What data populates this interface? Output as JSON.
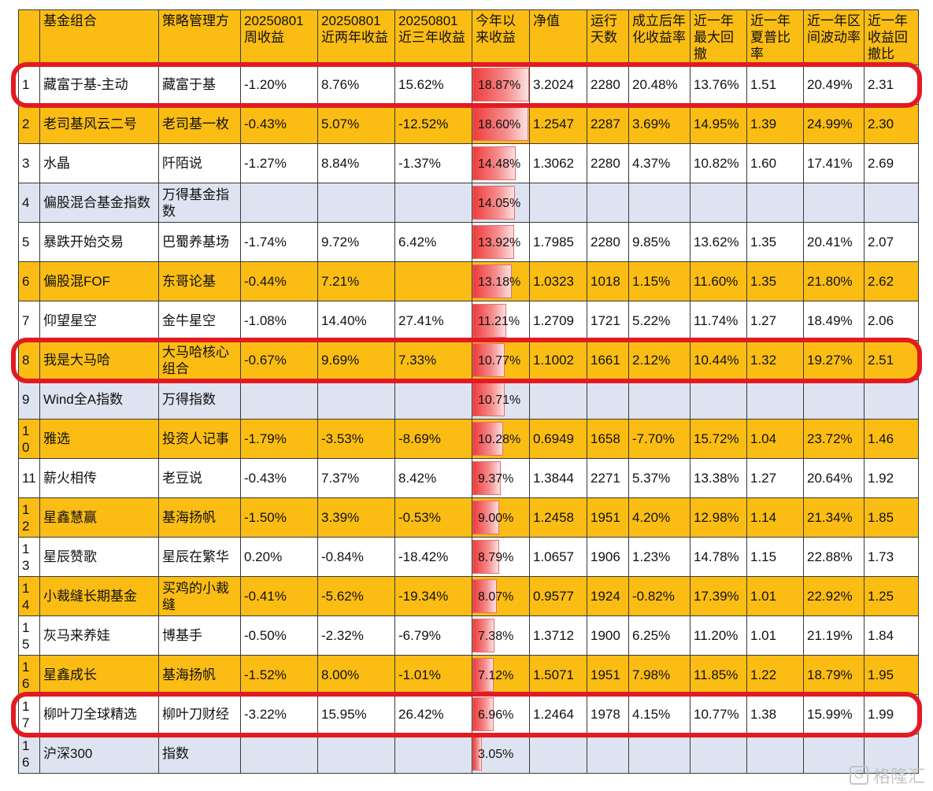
{
  "headers": [
    "",
    "基金组合",
    "策略管理方",
    "20250801周收益",
    "20250801近两年收益",
    "20250801近三年收益",
    "今年以来收益",
    "净值",
    "运行天数",
    "成立后年化收益率",
    "近一年最大回撤",
    "近一年夏普比率",
    "近一年区间波动率",
    "近一年收益回撤比"
  ],
  "rows": [
    {
      "idx": "1",
      "name": "藏富于基-主动",
      "manager": "藏富于基",
      "week": "-1.20%",
      "two_year": "8.76%",
      "three_year": "15.62%",
      "ytd": "18.87%",
      "ytd_value": 18.87,
      "nav": "3.2024",
      "days": "2280",
      "annual": "20.48%",
      "max_dd": "13.76%",
      "sharpe": "1.51",
      "vol": "20.49%",
      "ret_dd": "2.31",
      "style": "white"
    },
    {
      "idx": "2",
      "name": "老司基风云二号",
      "manager": "老司基一枚",
      "week": "-0.43%",
      "two_year": "5.07%",
      "three_year": "-12.52%",
      "ytd": "18.60%",
      "ytd_value": 18.6,
      "nav": "1.2547",
      "days": "2287",
      "annual": "3.69%",
      "max_dd": "14.95%",
      "sharpe": "1.39",
      "vol": "24.99%",
      "ret_dd": "2.30",
      "style": "yellow"
    },
    {
      "idx": "3",
      "name": "水晶",
      "manager": "阡陌说",
      "week": "-1.27%",
      "two_year": "8.84%",
      "three_year": "-1.37%",
      "ytd": "14.48%",
      "ytd_value": 14.48,
      "nav": "1.3062",
      "days": "2280",
      "annual": "4.37%",
      "max_dd": "10.82%",
      "sharpe": "1.60",
      "vol": "17.41%",
      "ret_dd": "2.69",
      "style": "white"
    },
    {
      "idx": "4",
      "name": "偏股混合基金指数",
      "manager": "万得基金指数",
      "week": "",
      "two_year": "",
      "three_year": "",
      "ytd": "14.05%",
      "ytd_value": 14.05,
      "nav": "",
      "days": "",
      "annual": "",
      "max_dd": "",
      "sharpe": "",
      "vol": "",
      "ret_dd": "",
      "style": "blue"
    },
    {
      "idx": "5",
      "name": "暴跌开始交易",
      "manager": "巴蜀养基场",
      "week": "-1.74%",
      "two_year": "9.72%",
      "three_year": "6.42%",
      "ytd": "13.92%",
      "ytd_value": 13.92,
      "nav": "1.7985",
      "days": "2280",
      "annual": "9.85%",
      "max_dd": "13.62%",
      "sharpe": "1.35",
      "vol": "20.41%",
      "ret_dd": "2.07",
      "style": "white"
    },
    {
      "idx": "6",
      "name": "偏股混FOF",
      "manager": "东哥论基",
      "week": "-0.44%",
      "two_year": "7.21%",
      "three_year": "",
      "ytd": "13.18%",
      "ytd_value": 13.18,
      "nav": "1.0323",
      "days": "1018",
      "annual": "1.15%",
      "max_dd": "11.60%",
      "sharpe": "1.35",
      "vol": "21.80%",
      "ret_dd": "2.62",
      "style": "yellow"
    },
    {
      "idx": "7",
      "name": "仰望星空",
      "manager": "金牛星空",
      "week": "-1.08%",
      "two_year": "14.40%",
      "three_year": "27.41%",
      "ytd": "11.21%",
      "ytd_value": 11.21,
      "nav": "1.2709",
      "days": "1721",
      "annual": "5.22%",
      "max_dd": "11.74%",
      "sharpe": "1.27",
      "vol": "18.49%",
      "ret_dd": "2.06",
      "style": "white"
    },
    {
      "idx": "8",
      "name": "我是大马哈",
      "manager": "大马哈核心组合",
      "week": "-0.67%",
      "two_year": "9.69%",
      "three_year": "7.33%",
      "ytd": "10.77%",
      "ytd_value": 10.77,
      "nav": "1.1002",
      "days": "1661",
      "annual": "2.12%",
      "max_dd": "10.44%",
      "sharpe": "1.32",
      "vol": "19.27%",
      "ret_dd": "2.51",
      "style": "yellow"
    },
    {
      "idx": "9",
      "name": "Wind全A指数",
      "manager": "万得指数",
      "week": "",
      "two_year": "",
      "three_year": "",
      "ytd": "10.71%",
      "ytd_value": 10.71,
      "nav": "",
      "days": "",
      "annual": "",
      "max_dd": "",
      "sharpe": "",
      "vol": "",
      "ret_dd": "",
      "style": "blue"
    },
    {
      "idx": "10",
      "name": "雅选",
      "manager": "投资人记事",
      "week": "-1.79%",
      "two_year": "-3.53%",
      "three_year": "-8.69%",
      "ytd": "10.28%",
      "ytd_value": 10.28,
      "nav": "0.6949",
      "days": "1658",
      "annual": "-7.70%",
      "max_dd": "15.72%",
      "sharpe": "1.04",
      "vol": "23.72%",
      "ret_dd": "1.46",
      "style": "yellow"
    },
    {
      "idx": "11",
      "name": "薪火相传",
      "manager": "老豆说",
      "week": "-0.43%",
      "two_year": "7.37%",
      "three_year": "8.42%",
      "ytd": "9.37%",
      "ytd_value": 9.37,
      "nav": "1.3844",
      "days": "2271",
      "annual": "5.37%",
      "max_dd": "13.38%",
      "sharpe": "1.27",
      "vol": "20.64%",
      "ret_dd": "1.92",
      "style": "white"
    },
    {
      "idx": "12",
      "name": "星鑫慧赢",
      "manager": "基海扬帆",
      "week": "-1.50%",
      "two_year": "3.39%",
      "three_year": "-0.53%",
      "ytd": "9.00%",
      "ytd_value": 9.0,
      "nav": "1.2458",
      "days": "1951",
      "annual": "4.20%",
      "max_dd": "12.98%",
      "sharpe": "1.14",
      "vol": "21.34%",
      "ret_dd": "1.85",
      "style": "yellow"
    },
    {
      "idx": "13",
      "name": "星辰赞歌",
      "manager": "星辰在繁华",
      "week": "0.20%",
      "two_year": "-0.84%",
      "three_year": "-18.42%",
      "ytd": "8.79%",
      "ytd_value": 8.79,
      "nav": "1.0657",
      "days": "1906",
      "annual": "1.23%",
      "max_dd": "14.78%",
      "sharpe": "1.15",
      "vol": "22.88%",
      "ret_dd": "1.73",
      "style": "white"
    },
    {
      "idx": "14",
      "name": "小裁缝长期基金",
      "manager": "买鸡的小裁缝",
      "week": "-0.41%",
      "two_year": "-5.62%",
      "three_year": "-19.34%",
      "ytd": "8.07%",
      "ytd_value": 8.07,
      "nav": "0.9577",
      "days": "1924",
      "annual": "-0.82%",
      "max_dd": "17.39%",
      "sharpe": "1.01",
      "vol": "22.92%",
      "ret_dd": "1.25",
      "style": "yellow"
    },
    {
      "idx": "15",
      "name": "灰马来养娃",
      "manager": "博基手",
      "week": "-0.50%",
      "two_year": "-2.32%",
      "three_year": "-6.79%",
      "ytd": "7.38%",
      "ytd_value": 7.38,
      "nav": "1.3712",
      "days": "1900",
      "annual": "6.25%",
      "max_dd": "11.20%",
      "sharpe": "1.01",
      "vol": "21.19%",
      "ret_dd": "1.84",
      "style": "white"
    },
    {
      "idx": "16",
      "name": "星鑫成长",
      "manager": "基海扬帆",
      "week": "-1.52%",
      "two_year": "8.00%",
      "three_year": "-1.01%",
      "ytd": "7.12%",
      "ytd_value": 7.12,
      "nav": "1.5071",
      "days": "1951",
      "annual": "7.98%",
      "max_dd": "11.85%",
      "sharpe": "1.22",
      "vol": "18.79%",
      "ret_dd": "1.95",
      "style": "yellow"
    },
    {
      "idx": "17",
      "name": "柳叶刀全球精选",
      "manager": "柳叶刀财经",
      "week": "-3.22%",
      "two_year": "15.95%",
      "three_year": "26.42%",
      "ytd": "6.96%",
      "ytd_value": 6.96,
      "nav": "1.2464",
      "days": "1978",
      "annual": "4.15%",
      "max_dd": "10.77%",
      "sharpe": "1.38",
      "vol": "15.99%",
      "ret_dd": "1.99",
      "style": "white"
    },
    {
      "idx": "16",
      "name": "沪深300",
      "manager": "指数",
      "week": "",
      "two_year": "",
      "three_year": "",
      "ytd": "3.05%",
      "ytd_value": 3.05,
      "nav": "",
      "days": "",
      "annual": "",
      "max_dd": "",
      "sharpe": "",
      "vol": "",
      "ret_dd": "",
      "style": "blue"
    }
  ],
  "highlighted_row_indices": [
    0,
    7,
    16
  ],
  "colors": {
    "header": "#fbbd13",
    "row_yellow": "#fbbd13",
    "row_blue": "#dde3f1",
    "highlight": "#e21a22",
    "bar": "#ef3b3b"
  },
  "watermark": {
    "text": "格隆汇",
    "icon": "gelonghui-logo-icon"
  }
}
